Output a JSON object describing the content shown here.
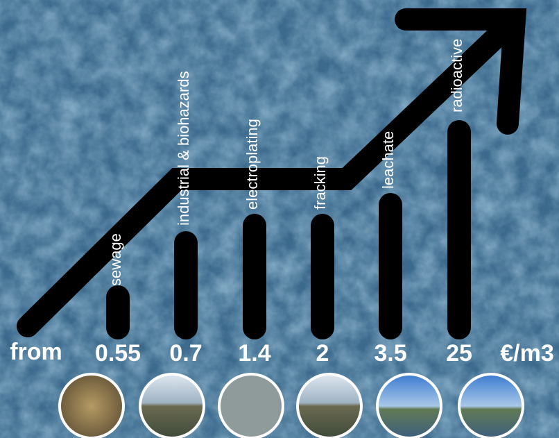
{
  "lead": "from",
  "unit": "€/m3",
  "items": [
    {
      "label": "sewage",
      "price": 0.55
    },
    {
      "label": "industrial  &  biohazards",
      "price": 0.7
    },
    {
      "label": "electroplating",
      "price": 1.4
    },
    {
      "label": "fracking",
      "price": 2
    },
    {
      "label": "leachate",
      "price": 3.5
    },
    {
      "label": "radioactive",
      "price": 25
    }
  ]
}
